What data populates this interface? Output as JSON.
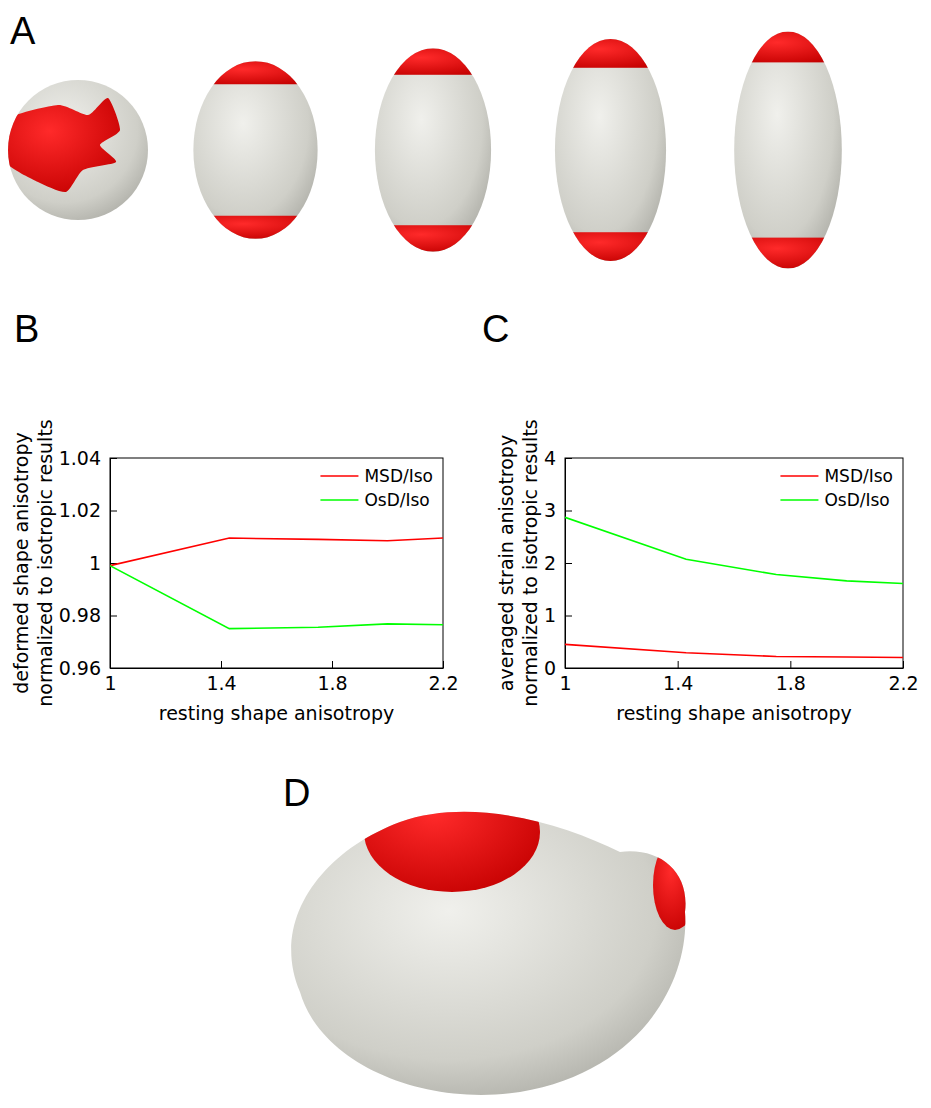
{
  "chart_data": [
    {
      "panel": "B",
      "type": "line",
      "x_label": "resting shape anisotropy",
      "y_label": [
        "deformed shape anisotropy",
        "normalized to isotropic results"
      ],
      "x": [
        1,
        1.43,
        1.75,
        2,
        2.2
      ],
      "series": [
        {
          "name": "MSD/Iso",
          "color": "#ff0000",
          "values": [
            0.999,
            1.0095,
            1.009,
            1.0085,
            1.0095
          ]
        },
        {
          "name": "OsD/Iso",
          "color": "#00ff00",
          "values": [
            0.999,
            0.975,
            0.9755,
            0.9768,
            0.9765
          ]
        }
      ],
      "xlim": [
        1,
        2.2
      ],
      "xticks": [
        1,
        1.4,
        1.8,
        2.2
      ],
      "ylim": [
        0.96,
        1.04
      ],
      "yticks": [
        0.96,
        0.98,
        1,
        1.02,
        1.04
      ],
      "grid": false,
      "legend": "top-right"
    },
    {
      "panel": "C",
      "type": "line",
      "x_label": "resting shape anisotropy",
      "y_label": [
        "averaged strain anisotropy",
        "normalized to isotropic results"
      ],
      "x": [
        1,
        1.43,
        1.75,
        2,
        2.2
      ],
      "series": [
        {
          "name": "MSD/Iso",
          "color": "#ff0000",
          "values": [
            0.45,
            0.29,
            0.22,
            0.21,
            0.2
          ]
        },
        {
          "name": "OsD/Iso",
          "color": "#00ff00",
          "values": [
            2.87,
            2.07,
            1.78,
            1.66,
            1.61
          ]
        }
      ],
      "xlim": [
        1,
        2.2
      ],
      "xticks": [
        1,
        1.4,
        1.8,
        2.2
      ],
      "ylim": [
        0,
        4
      ],
      "yticks": [
        0,
        1,
        2,
        3,
        4
      ],
      "grid": false,
      "legend": "top-right"
    }
  ],
  "illustrations": [
    {
      "panel": "A",
      "resting_shape_anisotropy": [
        1,
        1.43,
        1.75,
        2,
        2.2
      ]
    },
    {
      "panel": "D"
    }
  ]
}
